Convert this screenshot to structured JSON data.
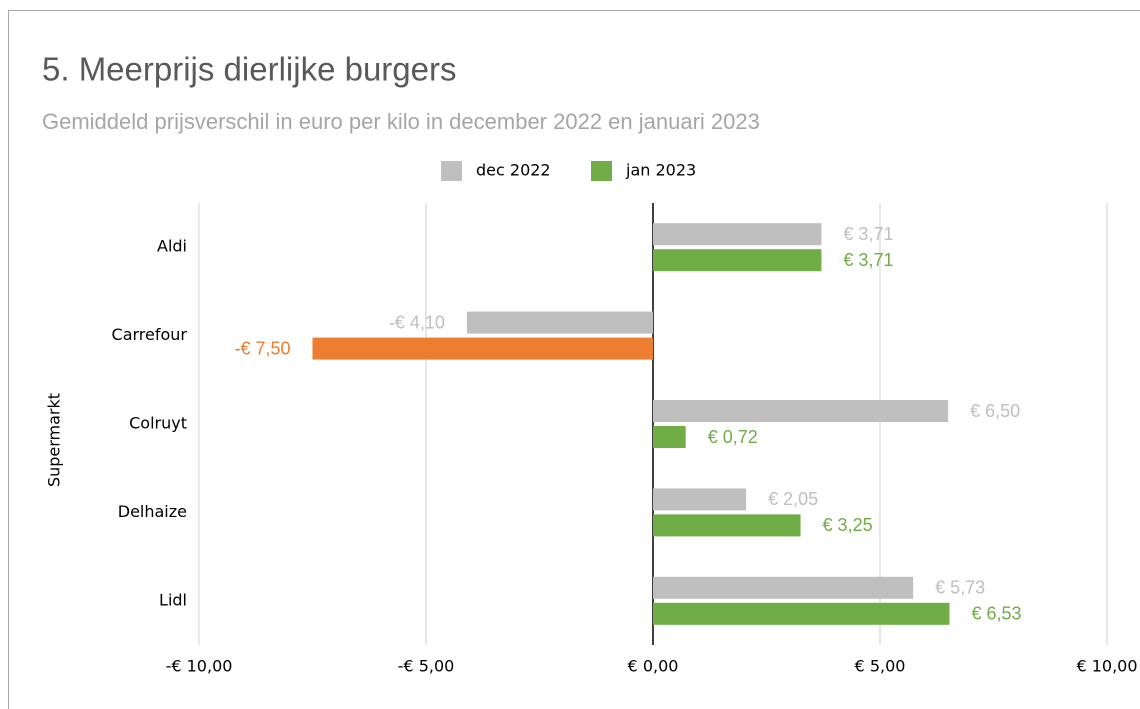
{
  "chart_data": {
    "type": "hbar",
    "title": "5. Meerprijs dierlijke burgers",
    "subtitle": "Gemiddeld prijsverschil in euro per kilo in december 2022 en januari 2023",
    "y_label": "Supermarkt",
    "categories": [
      "Aldi",
      "Carrefour",
      "Colruyt",
      "Delhaize",
      "Lidl"
    ],
    "series": [
      {
        "name": "dec 2022",
        "color": "#bfbfbf",
        "label_color": "#bfbfbf",
        "values": [
          3.71,
          -4.1,
          6.5,
          2.05,
          5.73
        ],
        "value_labels": [
          "€ 3,71",
          "-€ 4,10",
          "€ 6,50",
          "€ 2,05",
          "€ 5,73"
        ]
      },
      {
        "name": "jan 2023",
        "color": "#70ad47",
        "colors": [
          "#70ad47",
          "#ed7d31",
          "#70ad47",
          "#70ad47",
          "#70ad47"
        ],
        "values": [
          3.71,
          -7.5,
          0.72,
          3.25,
          6.53
        ],
        "value_labels": [
          "€ 3,71",
          "-€ 7,50",
          "€ 0,72",
          "€ 3,25",
          "€ 6,53"
        ]
      }
    ],
    "xlim": [
      -10,
      10
    ],
    "xticks": [
      {
        "value": -10,
        "label": "-€ 10,00"
      },
      {
        "value": -5,
        "label": "-€ 5,00"
      },
      {
        "value": 0,
        "label": "€ 0,00"
      },
      {
        "value": 5,
        "label": "€ 5,00"
      },
      {
        "value": 10,
        "label": "€ 10,00"
      }
    ],
    "grid": true,
    "legend": "top"
  }
}
